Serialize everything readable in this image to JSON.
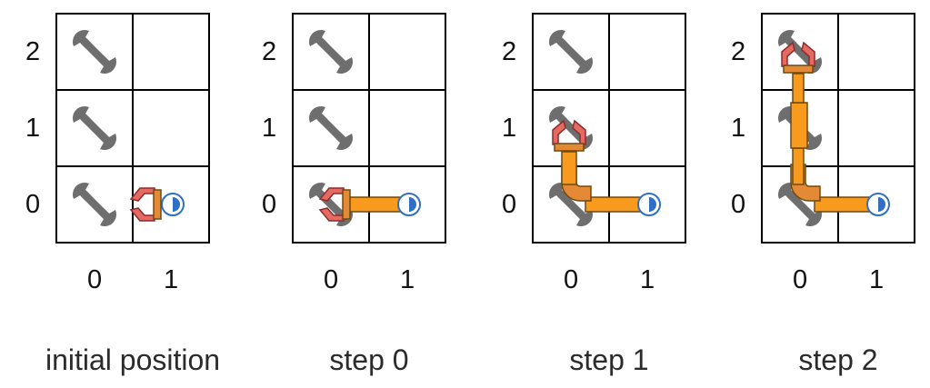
{
  "colors": {
    "grid": "#000000",
    "wrench": "#6e6e6e",
    "arm_fill": "#f79a1e",
    "arm_joint": "#e48a36",
    "arm_outline": "#6b4a10",
    "gripper_fill": "#e46a62",
    "gripper_outline": "#8e2b2b",
    "base_ring": "#2f6fc4"
  },
  "row_labels": [
    "2",
    "1",
    "0"
  ],
  "col_labels": [
    "0",
    "1"
  ],
  "panels": [
    {
      "caption": "initial position",
      "state": "gripper at cell (1,0)"
    },
    {
      "caption": "step 0",
      "state": "gripper at cell (0,0), arm extended left"
    },
    {
      "caption": "step 1",
      "state": "gripper at cell (0,1), arm bent up"
    },
    {
      "caption": "step 2",
      "state": "gripper at cell (0,2), arm bent up"
    }
  ],
  "icons": {
    "tool": "wrench-icon",
    "gripper": "gripper-icon",
    "base": "base-pivot-icon"
  }
}
